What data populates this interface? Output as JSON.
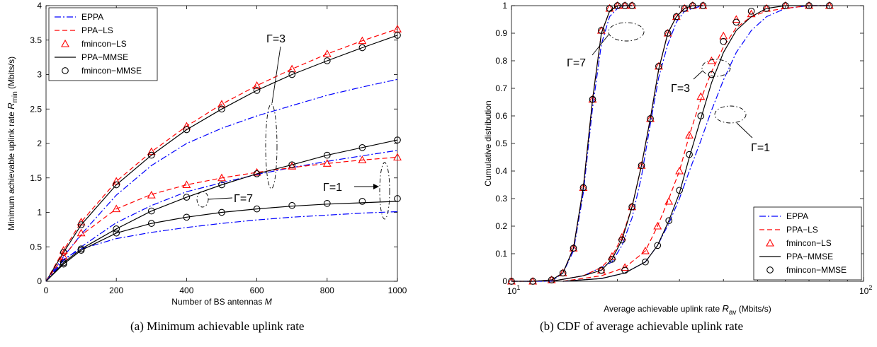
{
  "colors": {
    "EPPA": "#0000ff",
    "PPA-LS": "#ff0000",
    "fmincon-LS": "#ff0000",
    "PPA-MMSE": "#000000",
    "fmincon-MMSE": "#000000"
  },
  "captions": {
    "a": "(a)  Minimum achievable uplink rate",
    "b": "(b)  CDF of average achievable uplink rate"
  },
  "chart_data": [
    {
      "type": "line",
      "xlabel": "Number of BS antennas M",
      "ylabel": "Minimum achievable uplink rate R_min (Mbits/s)",
      "xlim": [
        0,
        1000
      ],
      "ylim": [
        0,
        4
      ],
      "xticks": [
        0,
        200,
        400,
        600,
        800,
        1000
      ],
      "yticks": [
        0,
        0.5,
        1,
        1.5,
        2,
        2.5,
        3,
        3.5,
        4
      ],
      "xscale": "linear",
      "grid": false,
      "legend_position": "top-left",
      "legend": [
        "EPPA",
        "PPA−LS",
        "fmincon−LS",
        "PPA−MMSE",
        "fmincon−MMSE"
      ],
      "x": [
        0,
        50,
        100,
        200,
        300,
        400,
        500,
        600,
        700,
        800,
        900,
        1000
      ],
      "groups": [
        {
          "label": "Γ=3",
          "series": [
            {
              "name": "EPPA",
              "values": [
                0,
                0.36,
                0.68,
                1.25,
                1.68,
                2.0,
                2.22,
                2.4,
                2.55,
                2.7,
                2.82,
                2.93
              ]
            },
            {
              "name": "PPA−LS",
              "values": [
                0,
                0.45,
                0.86,
                1.45,
                1.88,
                2.25,
                2.57,
                2.84,
                3.08,
                3.3,
                3.49,
                3.66
              ]
            },
            {
              "name": "fmincon−LS",
              "values": [
                null,
                0.45,
                0.86,
                1.45,
                1.88,
                2.25,
                2.57,
                2.84,
                3.08,
                3.3,
                3.49,
                3.66
              ]
            },
            {
              "name": "PPA−MMSE",
              "values": [
                0,
                0.42,
                0.82,
                1.4,
                1.83,
                2.2,
                2.5,
                2.77,
                3.0,
                3.2,
                3.39,
                3.57
              ]
            },
            {
              "name": "fmincon−MMSE",
              "values": [
                null,
                0.42,
                0.82,
                1.4,
                1.83,
                2.2,
                2.5,
                2.77,
                3.0,
                3.2,
                3.39,
                3.57
              ]
            }
          ]
        },
        {
          "label": "Γ=7",
          "series": [
            {
              "name": "EPPA",
              "values": [
                0,
                0.3,
                0.5,
                0.85,
                1.1,
                1.3,
                1.43,
                1.55,
                1.65,
                1.74,
                1.82,
                1.9
              ]
            },
            {
              "name": "PPA−LS",
              "values": [
                0,
                0.36,
                0.67,
                1.05,
                1.26,
                1.4,
                1.5,
                1.58,
                1.65,
                1.71,
                1.76,
                1.8
              ]
            },
            {
              "name": "fmincon−LS",
              "values": [
                null,
                0.36,
                0.7,
                1.05,
                1.25,
                1.4,
                1.5,
                1.58,
                1.67,
                1.71,
                1.76,
                1.8
              ]
            },
            {
              "name": "PPA−MMSE",
              "values": [
                0,
                0.27,
                0.47,
                0.76,
                1.02,
                1.22,
                1.4,
                1.56,
                1.69,
                1.83,
                1.94,
                2.05
              ]
            },
            {
              "name": "fmincon−MMSE",
              "values": [
                null,
                0.27,
                0.47,
                0.76,
                1.02,
                1.22,
                1.4,
                1.56,
                1.69,
                1.83,
                1.94,
                2.05
              ]
            }
          ]
        },
        {
          "label": "Γ=1",
          "series": [
            {
              "name": "EPPA",
              "values": [
                0,
                0.32,
                0.47,
                0.62,
                0.71,
                0.78,
                0.84,
                0.89,
                0.93,
                0.96,
                0.99,
                1.01
              ]
            },
            {
              "name": "PPA−MMSE",
              "values": [
                0,
                0.25,
                0.45,
                0.7,
                0.84,
                0.93,
                1.0,
                1.05,
                1.09,
                1.12,
                1.14,
                1.16
              ]
            },
            {
              "name": "fmincon−MMSE",
              "values": [
                null,
                0.25,
                0.45,
                0.7,
                0.84,
                0.93,
                1.0,
                1.05,
                1.1,
                1.13,
                1.16,
                1.2
              ]
            }
          ]
        }
      ]
    },
    {
      "type": "line",
      "xlabel": "Average achievable uplink rate R_av (Mbits/s)",
      "ylabel": "Cumulative distribution",
      "xlim": [
        10,
        100
      ],
      "ylim": [
        0,
        1
      ],
      "xscale": "log",
      "xticks": [
        "10^1",
        "10^2"
      ],
      "yticks": [
        0,
        0.1,
        0.2,
        0.3,
        0.4,
        0.5,
        0.6,
        0.7,
        0.8,
        0.9,
        1
      ],
      "grid": false,
      "legend_position": "bottom-right",
      "legend": [
        "EPPA",
        "PPA−LS",
        "fmincon−LS",
        "PPA−MMSE",
        "fmincon−MMSE"
      ],
      "groups": [
        {
          "label": "Γ=7",
          "x": [
            10,
            11.5,
            13,
            14,
            15,
            16,
            17,
            18,
            19,
            20,
            21,
            22
          ],
          "series": [
            {
              "name": "EPPA",
              "values": [
                0,
                0,
                0,
                0.03,
                0.11,
                0.32,
                0.63,
                0.86,
                0.96,
                0.99,
                1,
                1
              ]
            },
            {
              "name": "PPA−LS",
              "values": [
                0,
                0,
                0.005,
                0.03,
                0.12,
                0.34,
                0.66,
                0.9,
                0.98,
                1,
                1,
                1
              ]
            },
            {
              "name": "fmincon−LS",
              "values": [
                0,
                0,
                0.005,
                0.03,
                0.12,
                0.34,
                0.66,
                0.91,
                0.99,
                1,
                1,
                1
              ]
            },
            {
              "name": "PPA−MMSE",
              "values": [
                0,
                0,
                0.005,
                0.03,
                0.12,
                0.34,
                0.66,
                0.9,
                0.98,
                1,
                1,
                1
              ]
            },
            {
              "name": "fmincon−MMSE",
              "values": [
                0,
                0,
                0.005,
                0.03,
                0.12,
                0.34,
                0.66,
                0.91,
                0.99,
                1,
                1,
                1
              ]
            }
          ]
        },
        {
          "label": "Γ=3",
          "x": [
            13,
            16,
            18,
            19.3,
            20.6,
            22,
            23.4,
            24.8,
            26.2,
            27.8,
            29.4,
            31,
            32.7,
            35
          ],
          "series": [
            {
              "name": "EPPA",
              "values": [
                0,
                0.02,
                0.05,
                0.07,
                0.13,
                0.23,
                0.38,
                0.57,
                0.74,
                0.86,
                0.94,
                0.98,
                0.99,
                1
              ]
            },
            {
              "name": "PPA−LS",
              "values": [
                0,
                0.02,
                0.05,
                0.09,
                0.16,
                0.27,
                0.42,
                0.59,
                0.77,
                0.9,
                0.96,
                0.99,
                1,
                1
              ]
            },
            {
              "name": "fmincon−LS",
              "values": [
                null,
                null,
                0.04,
                0.09,
                0.16,
                0.27,
                0.42,
                0.59,
                0.78,
                0.9,
                0.96,
                0.99,
                1,
                1
              ]
            },
            {
              "name": "PPA−MMSE",
              "values": [
                0,
                0.02,
                0.04,
                0.08,
                0.15,
                0.27,
                0.42,
                0.59,
                0.77,
                0.9,
                0.96,
                0.99,
                1,
                1
              ]
            },
            {
              "name": "fmincon−MMSE",
              "values": [
                null,
                null,
                0.04,
                0.08,
                0.15,
                0.27,
                0.42,
                0.59,
                0.78,
                0.9,
                0.96,
                0.99,
                1,
                1
              ]
            }
          ]
        },
        {
          "label": "Γ=1",
          "x": [
            14,
            18,
            21,
            24,
            26,
            28,
            30,
            32,
            34.5,
            37,
            40,
            43.5,
            48,
            53,
            60,
            70,
            80
          ],
          "series": [
            {
              "name": "EPPA",
              "values": [
                0,
                0.01,
                0.03,
                0.07,
                0.13,
                0.21,
                0.3,
                0.4,
                0.51,
                0.62,
                0.73,
                0.83,
                0.91,
                0.96,
                0.99,
                1,
                1
              ]
            },
            {
              "name": "PPA−LS",
              "values": [
                0,
                0.02,
                0.05,
                0.11,
                0.2,
                0.3,
                0.4,
                0.53,
                0.66,
                0.76,
                0.85,
                0.92,
                0.96,
                0.98,
                0.99,
                1,
                1
              ]
            },
            {
              "name": "fmincon−LS",
              "values": [
                null,
                null,
                0.05,
                0.11,
                0.2,
                0.29,
                0.4,
                0.53,
                0.67,
                0.8,
                0.89,
                0.95,
                0.97,
                0.99,
                1,
                1,
                1
              ]
            },
            {
              "name": "PPA−MMSE",
              "values": [
                0,
                0.01,
                0.03,
                0.07,
                0.13,
                0.22,
                0.32,
                0.45,
                0.59,
                0.72,
                0.83,
                0.91,
                0.96,
                0.99,
                1,
                1,
                1
              ]
            },
            {
              "name": "fmincon−MMSE",
              "values": [
                null,
                null,
                0.04,
                0.07,
                0.13,
                0.22,
                0.33,
                0.46,
                0.6,
                0.75,
                0.87,
                0.94,
                0.98,
                0.99,
                1,
                1,
                1
              ]
            }
          ]
        }
      ]
    }
  ]
}
